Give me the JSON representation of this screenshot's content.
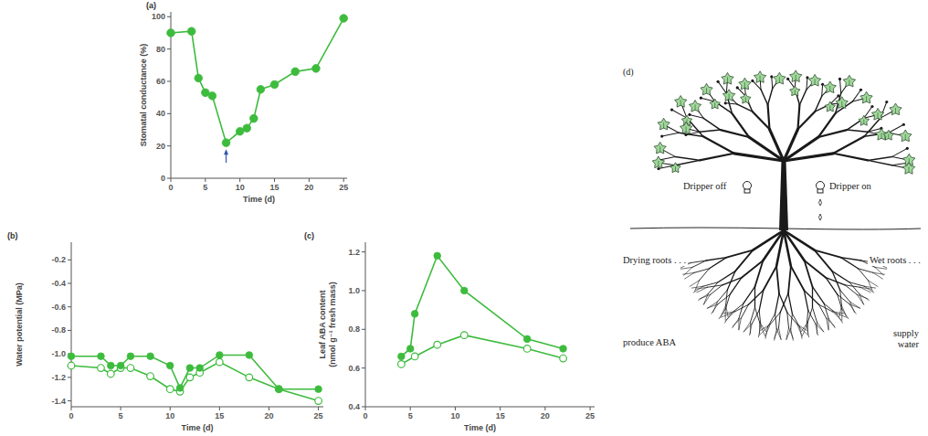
{
  "chart_data": [
    {
      "type": "line",
      "panel": "(a)",
      "xlabel": "Time (d)",
      "ylabel": "Stomatal conductance (%)",
      "x": [
        0,
        3,
        4,
        5,
        6,
        8,
        10,
        11,
        12,
        13,
        15,
        18,
        21,
        25
      ],
      "series": [
        {
          "color": "#3dbb3d",
          "marker": "filled_circle",
          "values": [
            90,
            91,
            62,
            53,
            51,
            22,
            29,
            31,
            37,
            55,
            58,
            66,
            68,
            99
          ]
        }
      ],
      "xlim": [
        0,
        25.5
      ],
      "ylim": [
        0,
        103
      ],
      "xticks": [
        0,
        5,
        10,
        15,
        20,
        25
      ],
      "yticks": [
        0,
        20,
        40,
        60,
        80,
        100
      ],
      "grid": false
    },
    {
      "type": "line",
      "panel": "(b)",
      "xlabel": "Time (d)",
      "ylabel": "Water potential (MPa)",
      "x": [
        0,
        3,
        4,
        5,
        6,
        8,
        10,
        11,
        12,
        13,
        15,
        18,
        21,
        25
      ],
      "series": [
        {
          "color": "#3dbb3d",
          "marker": "filled_circle",
          "values": [
            -1.02,
            -1.02,
            -1.1,
            -1.1,
            -1.02,
            -1.02,
            -1.1,
            -1.29,
            -1.12,
            -1.12,
            -1.01,
            -1.01,
            -1.3,
            -1.3
          ]
        },
        {
          "color": "#3dbb3d",
          "marker": "open_circle",
          "values": [
            -1.1,
            -1.12,
            -1.17,
            -1.12,
            -1.12,
            -1.19,
            -1.3,
            -1.32,
            -1.2,
            -1.16,
            -1.07,
            -1.2,
            -1.3,
            -1.4
          ]
        }
      ],
      "xlim": [
        0,
        25.5
      ],
      "ylim": [
        -1.45,
        -0.05
      ],
      "xticks": [
        0,
        5,
        10,
        15,
        20,
        25
      ],
      "yticks": [
        -0.2,
        -0.4,
        -0.6,
        -0.8,
        {
          "value": -1,
          "label": "-1.0"
        },
        -1.2,
        -1.4
      ],
      "grid": false
    },
    {
      "type": "line",
      "panel": "(c)",
      "xlabel": "Time (d)",
      "ylabel": "Leaf ABA content (nmol g⁻¹ fresh mass)",
      "series": [
        {
          "color": "#3dbb3d",
          "marker": "filled_circle",
          "x": [
            4,
            5,
            5.5,
            8,
            11,
            18,
            22
          ],
          "values": [
            0.66,
            0.7,
            0.88,
            1.18,
            1.0,
            0.75,
            0.7
          ]
        },
        {
          "color": "#3dbb3d",
          "marker": "open_circle",
          "x": [
            4,
            5.5,
            8,
            11,
            18,
            22
          ],
          "values": [
            0.62,
            0.66,
            0.72,
            0.77,
            0.7,
            0.65
          ]
        }
      ],
      "xlim": [
        0,
        25.5
      ],
      "ylim": [
        0.4,
        1.25
      ],
      "xticks": [
        0,
        5,
        10,
        15,
        20,
        25
      ],
      "yticks": [
        0.4,
        0.6,
        0.8,
        {
          "value": 1,
          "label": "1.0"
        },
        1.2
      ],
      "grid": false
    }
  ],
  "diagram": {
    "panel": "(d)",
    "dripper_off": "Dripper off",
    "dripper_on": "Dripper on",
    "left_roots": [
      "Drying roots . . .",
      "produce ABA"
    ],
    "right_roots": [
      "Wet roots . . .",
      "supply water"
    ]
  }
}
